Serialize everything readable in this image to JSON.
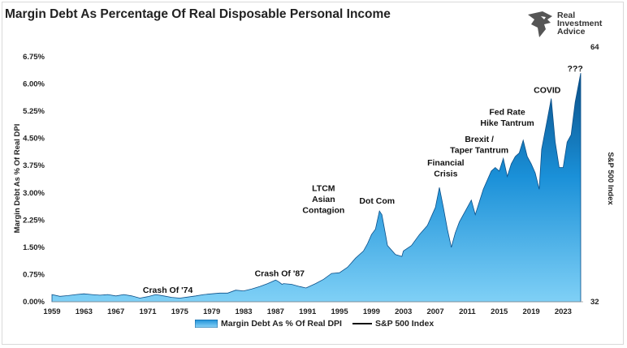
{
  "title": "Margin Debt As Percentage Of Real Disposable Personal Income",
  "brand": {
    "line1": "Real",
    "line2": "Investment",
    "line3": "Advice"
  },
  "chart_data": {
    "type": "area",
    "ylabel": "Margin Debt As % Of Real DPI",
    "y2label": "S&P 500 Index",
    "ylim": [
      0,
      6.75
    ],
    "yticks": [
      "0.00%",
      "0.75%",
      "1.50%",
      "2.25%",
      "3.00%",
      "3.75%",
      "4.50%",
      "5.25%",
      "6.00%",
      "6.75%"
    ],
    "y2ticks": [
      "32",
      "64"
    ],
    "xticks": [
      "1959",
      "1963",
      "1967",
      "1971",
      "1975",
      "1979",
      "1983",
      "1987",
      "1991",
      "1995",
      "1999",
      "2003",
      "2007",
      "2011",
      "2015",
      "2019",
      "2023"
    ],
    "xlim": [
      1959,
      2025.5
    ],
    "series": [
      {
        "name": "Margin Debt As % Of Real DPI",
        "x": [
          1959,
          1960,
          1961,
          1962,
          1963,
          1964,
          1965,
          1966,
          1967,
          1968,
          1969,
          1970,
          1971,
          1972,
          1973,
          1974,
          1975,
          1976,
          1977,
          1978,
          1979,
          1980,
          1981,
          1982,
          1983,
          1984,
          1985,
          1986,
          1987,
          1987.4,
          1987.8,
          1988,
          1989,
          1990,
          1990.8,
          1991,
          1992,
          1993,
          1994,
          1995,
          1996,
          1997,
          1998,
          1998.5,
          1999,
          1999.5,
          2000,
          2000.3,
          2000.8,
          2001,
          2002,
          2002.8,
          2003,
          2004,
          2005,
          2006,
          2007,
          2007.5,
          2008,
          2008.5,
          2009,
          2009.5,
          2010,
          2011,
          2011.5,
          2012,
          2013,
          2014,
          2014.5,
          2015,
          2015.5,
          2016,
          2016.5,
          2017,
          2017.5,
          2018,
          2018.5,
          2019,
          2019.5,
          2020,
          2020.3,
          2021,
          2021.5,
          2022,
          2022.5,
          2023,
          2023.5,
          2024,
          2024.5,
          2025.2
        ],
        "values": [
          0.2,
          0.15,
          0.17,
          0.2,
          0.22,
          0.2,
          0.18,
          0.2,
          0.16,
          0.2,
          0.16,
          0.1,
          0.14,
          0.2,
          0.16,
          0.12,
          0.1,
          0.13,
          0.16,
          0.2,
          0.22,
          0.24,
          0.24,
          0.32,
          0.3,
          0.35,
          0.42,
          0.5,
          0.6,
          0.55,
          0.48,
          0.5,
          0.48,
          0.42,
          0.38,
          0.4,
          0.5,
          0.62,
          0.78,
          0.8,
          0.95,
          1.2,
          1.4,
          1.6,
          1.85,
          2.0,
          2.5,
          2.4,
          1.8,
          1.55,
          1.3,
          1.25,
          1.4,
          1.55,
          1.85,
          2.1,
          2.6,
          3.15,
          2.6,
          2.0,
          1.5,
          1.9,
          2.2,
          2.6,
          2.8,
          2.4,
          3.1,
          3.6,
          3.7,
          3.6,
          3.95,
          3.45,
          3.8,
          4.0,
          4.1,
          4.45,
          4.0,
          3.8,
          3.55,
          3.1,
          4.2,
          5.0,
          5.6,
          4.4,
          3.7,
          3.7,
          4.4,
          4.6,
          5.5,
          6.3
        ]
      },
      {
        "name": "S&P 500 Index"
      }
    ],
    "annotations": [
      {
        "text": "Crash Of '74",
        "x": 1973.5,
        "y": 0.25
      },
      {
        "text": "Crash Of '87",
        "x": 1987.5,
        "y": 0.7
      },
      {
        "text": "LTCM",
        "x": 1993,
        "y": 3.05
      },
      {
        "text": "Asian",
        "x": 1993,
        "y": 2.75
      },
      {
        "text": "Contagion",
        "x": 1993,
        "y": 2.45
      },
      {
        "text": "Dot Com",
        "x": 1999.7,
        "y": 2.7
      },
      {
        "text": "Financial",
        "x": 2008.3,
        "y": 3.75
      },
      {
        "text": "Crisis",
        "x": 2008.3,
        "y": 3.45
      },
      {
        "text": "Brexit /",
        "x": 2012.5,
        "y": 4.4
      },
      {
        "text": "Taper Tantrum",
        "x": 2012.5,
        "y": 4.1
      },
      {
        "text": "Fed Rate",
        "x": 2016,
        "y": 5.15
      },
      {
        "text": "Hike Tantrum",
        "x": 2016,
        "y": 4.85
      },
      {
        "text": "COVID",
        "x": 2021,
        "y": 5.75
      },
      {
        "text": "???",
        "x": 2024.5,
        "y": 6.35
      }
    ],
    "legend": "bottom-center",
    "grid": false
  }
}
